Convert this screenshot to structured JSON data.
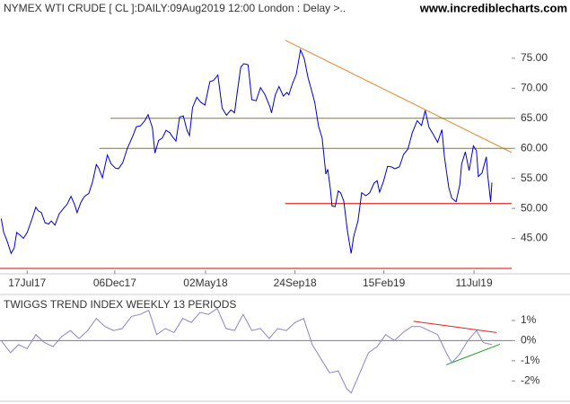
{
  "chart_data": [
    {
      "type": "line",
      "title": "NYMEX WTI CRUDE [ CL ]:DAILY:09Aug2019 12:00 London : Delay >..",
      "source": "www.incrediblecharts.com",
      "xlim": [
        "2017-06-03",
        "2019-09-10"
      ],
      "ylim": [
        40,
        82
      ],
      "xticks": [
        {
          "value": "2017-07-17",
          "label": "17Jul17"
        },
        {
          "value": "2017-12-06",
          "label": "06Dec17"
        },
        {
          "value": "2018-05-02",
          "label": "02May18"
        },
        {
          "value": "2018-09-24",
          "label": "24Sep18"
        },
        {
          "value": "2019-02-15",
          "label": "15Feb19"
        },
        {
          "value": "2019-07-11",
          "label": "11Jul19"
        }
      ],
      "yticks": [
        {
          "value": 45,
          "label": "45.00"
        },
        {
          "value": 50,
          "label": "50.00"
        },
        {
          "value": 55,
          "label": "55.00"
        },
        {
          "value": 60,
          "label": "60.00"
        },
        {
          "value": 65,
          "label": "65.00"
        },
        {
          "value": 70,
          "label": "70.00"
        },
        {
          "value": 75,
          "label": "75.00"
        }
      ],
      "series": [
        {
          "color": "#0000cc",
          "x": [
            "2017-06-05",
            "2017-06-09",
            "2017-06-14",
            "2017-06-21",
            "2017-06-26",
            "2017-06-30",
            "2017-07-06",
            "2017-07-11",
            "2017-07-17",
            "2017-07-24",
            "2017-07-31",
            "2017-08-04",
            "2017-08-09",
            "2017-08-15",
            "2017-08-21",
            "2017-08-25",
            "2017-08-31",
            "2017-09-07",
            "2017-09-14",
            "2017-09-20",
            "2017-09-26",
            "2017-10-02",
            "2017-10-06",
            "2017-10-12",
            "2017-10-18",
            "2017-10-25",
            "2017-10-31",
            "2017-11-06",
            "2017-11-10",
            "2017-11-16",
            "2017-11-24",
            "2017-11-30",
            "2017-12-07",
            "2017-12-12",
            "2017-12-19",
            "2017-12-26",
            "2018-01-04",
            "2018-01-10",
            "2018-01-16",
            "2018-01-23",
            "2018-01-29",
            "2018-02-05",
            "2018-02-09",
            "2018-02-15",
            "2018-02-21",
            "2018-02-27",
            "2018-03-05",
            "2018-03-09",
            "2018-03-15",
            "2018-03-21",
            "2018-03-27",
            "2018-04-02",
            "2018-04-06",
            "2018-04-11",
            "2018-04-18",
            "2018-04-24",
            "2018-05-01",
            "2018-05-09",
            "2018-05-15",
            "2018-05-22",
            "2018-05-29",
            "2018-06-05",
            "2018-06-12",
            "2018-06-18",
            "2018-06-22",
            "2018-06-28",
            "2018-07-03",
            "2018-07-10",
            "2018-07-16",
            "2018-07-23",
            "2018-07-30",
            "2018-08-06",
            "2018-08-14",
            "2018-08-17",
            "2018-08-23",
            "2018-08-29",
            "2018-09-05",
            "2018-09-11",
            "2018-09-14",
            "2018-09-20",
            "2018-09-26",
            "2018-10-03",
            "2018-10-09",
            "2018-10-15",
            "2018-10-22",
            "2018-10-26",
            "2018-11-01",
            "2018-11-07",
            "2018-11-13",
            "2018-11-16",
            "2018-11-20",
            "2018-11-23",
            "2018-11-28",
            "2018-12-03",
            "2018-12-07",
            "2018-12-12",
            "2018-12-18",
            "2018-12-24",
            "2018-12-28",
            "2019-01-04",
            "2019-01-10",
            "2019-01-17",
            "2019-01-23",
            "2019-01-30",
            "2019-02-04",
            "2019-02-08",
            "2019-02-14",
            "2019-02-21",
            "2019-02-27",
            "2019-03-05",
            "2019-03-12",
            "2019-03-19",
            "2019-03-26",
            "2019-04-02",
            "2019-04-10",
            "2019-04-17",
            "2019-04-23",
            "2019-04-29",
            "2019-05-06",
            "2019-05-13",
            "2019-05-20",
            "2019-05-24",
            "2019-05-31",
            "2019-06-05",
            "2019-06-12",
            "2019-06-18",
            "2019-06-21",
            "2019-06-27",
            "2019-07-03",
            "2019-07-10",
            "2019-07-15",
            "2019-07-18",
            "2019-07-24",
            "2019-07-31",
            "2019-08-02",
            "2019-08-07",
            "2019-08-09"
          ],
          "values": [
            48.3,
            46.0,
            44.7,
            42.5,
            43.4,
            46.0,
            45.5,
            45.0,
            46.0,
            48.0,
            50.2,
            49.6,
            49.3,
            47.6,
            47.4,
            47.9,
            47.2,
            49.1,
            50.0,
            50.7,
            52.0,
            50.6,
            49.3,
            51.0,
            52.0,
            52.5,
            54.4,
            57.3,
            56.7,
            55.1,
            58.9,
            57.4,
            56.7,
            56.6,
            57.6,
            59.9,
            62.0,
            63.6,
            63.7,
            64.5,
            65.6,
            63.4,
            59.2,
            61.3,
            61.7,
            63.0,
            62.6,
            62.0,
            61.2,
            65.2,
            65.4,
            63.0,
            62.1,
            66.8,
            68.5,
            67.7,
            67.2,
            71.1,
            71.3,
            72.2,
            66.7,
            65.5,
            66.4,
            65.9,
            69.0,
            73.5,
            74.1,
            73.9,
            68.1,
            67.9,
            70.1,
            69.0,
            67.0,
            65.9,
            68.9,
            70.3,
            68.7,
            69.3,
            68.9,
            70.8,
            72.3,
            76.4,
            74.9,
            71.8,
            69.2,
            67.6,
            63.7,
            61.7,
            55.7,
            56.5,
            53.4,
            50.4,
            50.3,
            52.9,
            52.6,
            51.2,
            46.2,
            42.5,
            45.3,
            47.9,
            52.6,
            52.1,
            52.6,
            54.2,
            54.6,
            52.7,
            54.4,
            57.0,
            56.9,
            56.6,
            56.9,
            59.0,
            59.9,
            62.6,
            64.6,
            63.8,
            66.3,
            63.5,
            62.3,
            61.0,
            63.1,
            58.6,
            53.5,
            51.7,
            51.1,
            53.9,
            57.4,
            59.4,
            56.3,
            60.4,
            59.6,
            55.3,
            55.9,
            58.6,
            55.7,
            51.1,
            54.3
          ]
        }
      ],
      "trendlines": [
        {
          "from": [
            "2018-09-08",
            78.0
          ],
          "to": [
            "2019-09-10",
            59.3
          ],
          "color": "#e08a2a"
        },
        {
          "from": [
            "2017-11-29",
            65.0
          ],
          "to": [
            "2019-09-10",
            65.0
          ],
          "color": "#8a7a20"
        },
        {
          "from": [
            "2017-11-11",
            60.0
          ],
          "to": [
            "2019-09-10",
            60.0
          ],
          "color": "#8a7a20"
        },
        {
          "from": [
            "2018-09-08",
            50.8
          ],
          "to": [
            "2019-09-10",
            50.8
          ],
          "color": "#dd0000"
        },
        {
          "from": [
            "2017-06-03",
            40.0
          ],
          "to": [
            "2019-09-10",
            40.0
          ],
          "color": "#dd0000"
        }
      ]
    },
    {
      "type": "line",
      "title": "TWIGGS TREND INDEX WEEKLY 13 PERIODS",
      "xlim": [
        "2017-06-03",
        "2019-09-10"
      ],
      "ylim": [
        -2.7,
        2.2
      ],
      "zero_line_color": "#7a70b8",
      "yticks": [
        {
          "value": -2,
          "label": "-2%"
        },
        {
          "value": -1,
          "label": "-1%"
        },
        {
          "value": 0,
          "label": "0%"
        },
        {
          "value": 1,
          "label": "1%"
        }
      ],
      "series": [
        {
          "color": "#8a84c8",
          "x": [
            "2017-06-05",
            "2017-06-20",
            "2017-07-03",
            "2017-07-17",
            "2017-07-31",
            "2017-08-14",
            "2017-08-28",
            "2017-09-11",
            "2017-09-25",
            "2017-10-09",
            "2017-10-23",
            "2017-11-06",
            "2017-11-20",
            "2017-12-04",
            "2017-12-18",
            "2018-01-02",
            "2018-01-16",
            "2018-01-30",
            "2018-02-12",
            "2018-02-26",
            "2018-03-12",
            "2018-03-26",
            "2018-04-09",
            "2018-04-23",
            "2018-05-07",
            "2018-05-21",
            "2018-06-04",
            "2018-06-18",
            "2018-07-02",
            "2018-07-16",
            "2018-07-30",
            "2018-08-13",
            "2018-08-27",
            "2018-09-10",
            "2018-09-24",
            "2018-10-08",
            "2018-10-22",
            "2018-11-05",
            "2018-11-19",
            "2018-12-03",
            "2018-12-17",
            "2018-12-24",
            "2019-01-07",
            "2019-01-21",
            "2019-02-04",
            "2019-02-18",
            "2019-03-04",
            "2019-03-18",
            "2019-04-01",
            "2019-04-15",
            "2019-04-29",
            "2019-05-13",
            "2019-05-27",
            "2019-06-05",
            "2019-06-17",
            "2019-07-01",
            "2019-07-15",
            "2019-07-26",
            "2019-08-09"
          ],
          "values": [
            0.0,
            -0.6,
            -0.2,
            -0.4,
            0.3,
            -0.1,
            -0.3,
            0.2,
            0.5,
            0.1,
            0.5,
            1.1,
            0.7,
            0.5,
            0.6,
            1.2,
            1.3,
            1.5,
            0.3,
            0.6,
            0.4,
            1.1,
            0.9,
            1.4,
            1.3,
            1.6,
            0.6,
            0.5,
            1.3,
            0.5,
            0.6,
            0.1,
            0.6,
            0.5,
            0.9,
            1.1,
            -0.2,
            -0.9,
            -1.6,
            -1.5,
            -2.4,
            -2.6,
            -1.6,
            -0.6,
            -0.3,
            0.3,
            0.0,
            0.4,
            0.7,
            0.7,
            0.5,
            0.3,
            -0.6,
            -1.1,
            -0.7,
            0.0,
            0.5,
            -0.1,
            -0.2
          ]
        }
      ],
      "trendlines": [
        {
          "from": [
            "2019-04-04",
            0.96
          ],
          "to": [
            "2019-08-16",
            0.4
          ],
          "color": "#e02020"
        },
        {
          "from": [
            "2019-05-27",
            -1.2
          ],
          "to": [
            "2019-08-22",
            -0.18
          ],
          "color": "#20a020"
        }
      ]
    }
  ]
}
